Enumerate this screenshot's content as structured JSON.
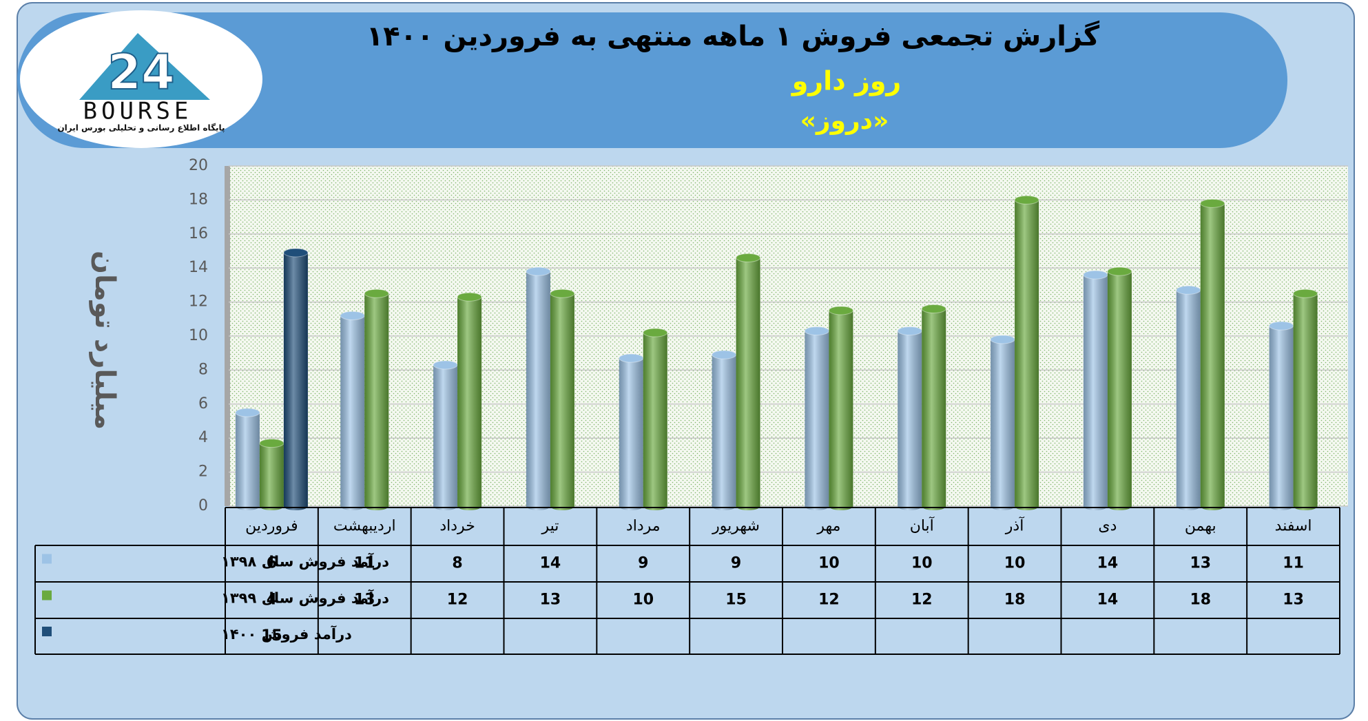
{
  "header": {
    "logo_number": "24",
    "logo_name": "BOURSE",
    "logo_tagline": "پایگاه اطلاع رسانی و تحلیلی بورس ایران"
  },
  "chart_data": {
    "type": "bar",
    "title": "گزارش تجمعی فروش ۱ ماهه منتهی به فروردین ۱۴۰۰",
    "subtitle": "روز دارو",
    "subtitle2": "«دروز»",
    "y_label": "میلیارد تومان",
    "categories": [
      "فروردین",
      "اردیبهشت",
      "خرداد",
      "تیر",
      "مرداد",
      "شهریور",
      "مهر",
      "آبان",
      "آذر",
      "دی",
      "بهمن",
      "اسفند"
    ],
    "series": [
      {
        "name": "درآمد فروش سال ۱۳۹۸",
        "color": "#9dc3e6",
        "values": [
          5.5,
          11.2,
          8.3,
          13.8,
          8.7,
          8.9,
          10.3,
          10.3,
          9.8,
          13.6,
          12.7,
          10.6
        ],
        "value_labels": [
          "6",
          "11",
          "8",
          "14",
          "9",
          "9",
          "10",
          "10",
          "10",
          "14",
          "13",
          "11"
        ]
      },
      {
        "name": "درآمد فروش سال ۱۳۹۹",
        "color": "#6aaa3f",
        "values": [
          3.7,
          12.5,
          12.3,
          12.5,
          10.2,
          14.6,
          11.5,
          11.6,
          18,
          13.8,
          17.8,
          12.5
        ],
        "value_labels": [
          "4",
          "13",
          "12",
          "13",
          "10",
          "15",
          "12",
          "12",
          "18",
          "14",
          "18",
          "13"
        ]
      },
      {
        "name": "درآمد فروش ۱۴۰۰",
        "color": "#1f4e79",
        "values": [
          14.9,
          null,
          null,
          null,
          null,
          null,
          null,
          null,
          null,
          null,
          null,
          null
        ],
        "value_labels": [
          "15",
          null,
          null,
          null,
          null,
          null,
          null,
          null,
          null,
          null,
          null,
          null
        ]
      }
    ],
    "ylim": [
      0,
      20
    ],
    "yticks": [
      0,
      2,
      4,
      6,
      8,
      10,
      12,
      14,
      16,
      18,
      20
    ],
    "grid": true
  }
}
